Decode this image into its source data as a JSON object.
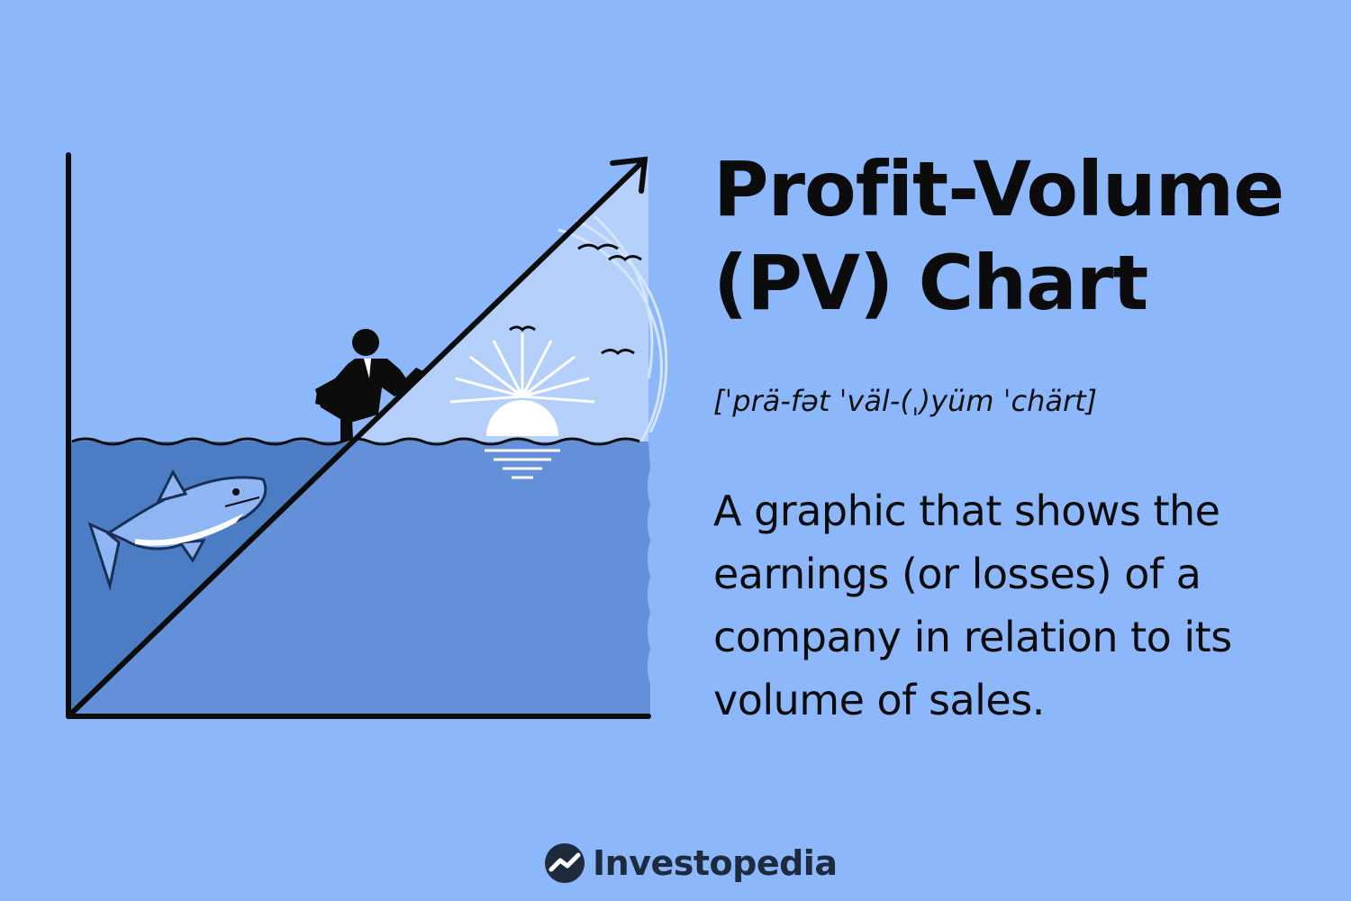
{
  "heading": {
    "line1": "Profit-Volume",
    "line2": "(PV) Chart"
  },
  "pronunciation": "[ˈprä-fət ˈväl-(ˌ)yüm ˈchärt]",
  "definition": "A graphic that shows the earnings (or losses) of a company in relation to its volume of sales.",
  "brand": {
    "name": "Investopedia",
    "logo_icon": "investopedia-logo-icon"
  },
  "illustration": {
    "elements": [
      "chart-axes",
      "rising-arrow",
      "businessman",
      "shark",
      "setting-sun",
      "sea",
      "birds"
    ],
    "colors": {
      "background": "#8cb7fb",
      "sea_dark": "#4c7cc4",
      "sea_light": "#6390d8",
      "sky_glow": "#b3cffa",
      "ink": "#0c0c0c"
    }
  }
}
